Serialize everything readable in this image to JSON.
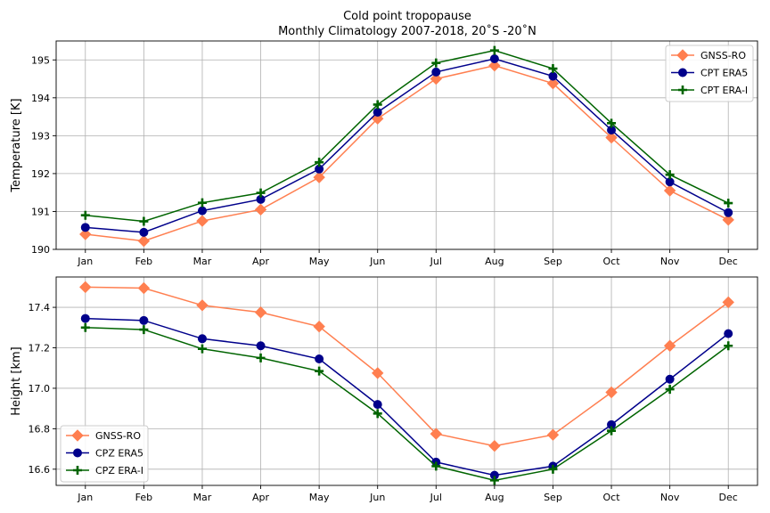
{
  "figure": {
    "title_line1": "Cold point tropopause",
    "title_line2": "Monthly Climatology 2007-2018, 20˚S -20˚N"
  },
  "chart_data": [
    {
      "type": "line",
      "ylabel": "Temperature [K]",
      "categories": [
        "Jan",
        "Feb",
        "Mar",
        "Apr",
        "May",
        "Jun",
        "Jul",
        "Aug",
        "Sep",
        "Oct",
        "Nov",
        "Dec"
      ],
      "ylim": [
        190,
        195.5
      ],
      "yticks": [
        190,
        191,
        192,
        193,
        194,
        195
      ],
      "grid": true,
      "legend_position": "top-right",
      "series": [
        {
          "name": "GNSS-RO",
          "color": "#ff7f50",
          "marker": "diamond",
          "values": [
            190.4,
            190.22,
            190.75,
            191.05,
            191.9,
            193.45,
            194.5,
            194.85,
            194.38,
            192.95,
            191.55,
            190.78
          ]
        },
        {
          "name": "CPT ERA5",
          "color": "#00008b",
          "marker": "circle",
          "values": [
            190.58,
            190.45,
            191.02,
            191.32,
            192.12,
            193.62,
            194.68,
            195.03,
            194.57,
            193.15,
            191.78,
            190.97
          ]
        },
        {
          "name": "CPT ERA-I",
          "color": "#006400",
          "marker": "plus",
          "values": [
            190.9,
            190.74,
            191.23,
            191.49,
            192.3,
            193.82,
            194.92,
            195.25,
            194.77,
            193.33,
            191.97,
            191.22
          ]
        }
      ]
    },
    {
      "type": "line",
      "ylabel": "Height [km]",
      "categories": [
        "Jan",
        "Feb",
        "Mar",
        "Apr",
        "May",
        "Jun",
        "Jul",
        "Aug",
        "Sep",
        "Oct",
        "Nov",
        "Dec"
      ],
      "ylim": [
        16.52,
        17.55
      ],
      "yticks": [
        16.6,
        16.8,
        17.0,
        17.2,
        17.4
      ],
      "grid": true,
      "legend_position": "bottom-left",
      "series": [
        {
          "name": "GNSS-RO",
          "color": "#ff7f50",
          "marker": "diamond",
          "values": [
            17.5,
            17.495,
            17.41,
            17.375,
            17.305,
            17.075,
            16.775,
            16.715,
            16.77,
            16.98,
            17.21,
            17.425
          ]
        },
        {
          "name": "CPZ ERA5",
          "color": "#00008b",
          "marker": "circle",
          "values": [
            17.345,
            17.335,
            17.245,
            17.21,
            17.145,
            16.92,
            16.635,
            16.57,
            16.615,
            16.82,
            17.045,
            17.27
          ]
        },
        {
          "name": "CPZ ERA-I",
          "color": "#006400",
          "marker": "plus",
          "values": [
            17.3,
            17.29,
            17.195,
            17.15,
            17.085,
            16.875,
            16.615,
            16.545,
            16.6,
            16.79,
            16.995,
            17.21
          ]
        }
      ]
    }
  ]
}
